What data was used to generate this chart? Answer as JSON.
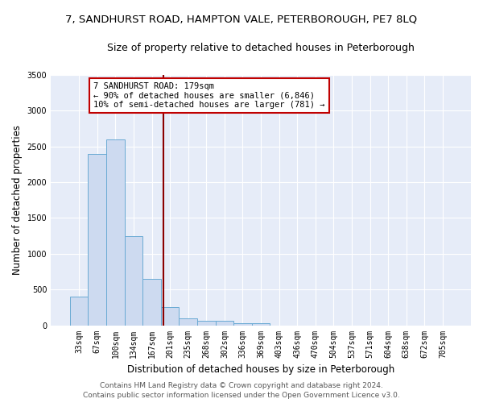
{
  "title": "7, SANDHURST ROAD, HAMPTON VALE, PETERBOROUGH, PE7 8LQ",
  "subtitle": "Size of property relative to detached houses in Peterborough",
  "xlabel": "Distribution of detached houses by size in Peterborough",
  "ylabel": "Number of detached properties",
  "categories": [
    "33sqm",
    "67sqm",
    "100sqm",
    "134sqm",
    "167sqm",
    "201sqm",
    "235sqm",
    "268sqm",
    "302sqm",
    "336sqm",
    "369sqm",
    "403sqm",
    "436sqm",
    "470sqm",
    "504sqm",
    "537sqm",
    "571sqm",
    "604sqm",
    "638sqm",
    "672sqm",
    "705sqm"
  ],
  "values": [
    400,
    2400,
    2600,
    1250,
    650,
    250,
    100,
    60,
    60,
    30,
    30,
    0,
    0,
    0,
    0,
    0,
    0,
    0,
    0,
    0,
    0
  ],
  "bar_color": "#cddaf0",
  "bar_edge_color": "#6aaad4",
  "background_color": "#e6ecf8",
  "grid_color": "#ffffff",
  "vline_x_bar_idx": 4.62,
  "vline_color": "#8b0000",
  "annotation_line1": "7 SANDHURST ROAD: 179sqm",
  "annotation_line2": "← 90% of detached houses are smaller (6,846)",
  "annotation_line3": "10% of semi-detached houses are larger (781) →",
  "annotation_box_color": "#ffffff",
  "annotation_box_edge_color": "#c00000",
  "ylim": [
    0,
    3500
  ],
  "yticks": [
    0,
    500,
    1000,
    1500,
    2000,
    2500,
    3000,
    3500
  ],
  "footer": "Contains HM Land Registry data © Crown copyright and database right 2024.\nContains public sector information licensed under the Open Government Licence v3.0.",
  "title_fontsize": 9.5,
  "subtitle_fontsize": 9,
  "ylabel_fontsize": 8.5,
  "xlabel_fontsize": 8.5,
  "tick_fontsize": 7,
  "annotation_fontsize": 7.5,
  "footer_fontsize": 6.5
}
